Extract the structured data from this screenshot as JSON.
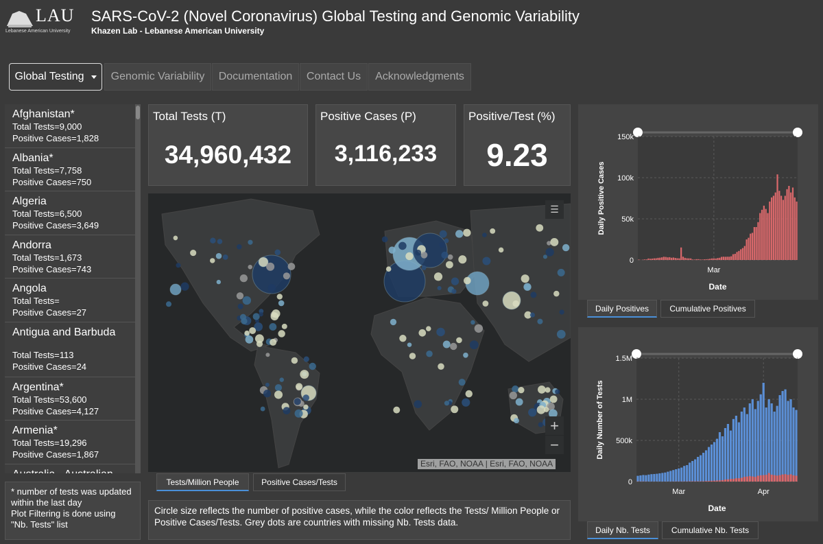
{
  "header": {
    "logo": "LAU",
    "logo_sub": "Lebanese American University",
    "title": "SARS-CoV-2 (Novel Coronavirus) Global Testing and Genomic Variability",
    "subtitle": "Khazen Lab - Lebanese American University"
  },
  "nav": [
    "Global Testing",
    "Genomic Variability",
    "Documentation",
    "Contact Us",
    "Acknowledgments"
  ],
  "countries": [
    {
      "name": "Afghanistan*",
      "tests": "Total Tests=9,000",
      "positives": "Positive Cases=1,828"
    },
    {
      "name": "Albania*",
      "tests": "Total Tests=7,758",
      "positives": "Positive Cases=750"
    },
    {
      "name": "Algeria",
      "tests": "Total Tests=6,500",
      "positives": "Positive Cases=3,649"
    },
    {
      "name": "Andorra",
      "tests": "Total Tests=1,673",
      "positives": "Positive Cases=743"
    },
    {
      "name": "Angola",
      "tests": "Total Tests=",
      "positives": "Positive Cases=27"
    },
    {
      "name": "Antigua and Barbuda",
      "tests": "Total Tests=113",
      "positives": "Positive Cases=24"
    },
    {
      "name": "Argentina*",
      "tests": "Total Tests=53,600",
      "positives": "Positive Cases=4,127"
    },
    {
      "name": "Armenia*",
      "tests": "Total Tests=19,296",
      "positives": "Positive Cases=1,867"
    },
    {
      "name": "Australia - Australian"
    }
  ],
  "footnote": [
    "* number of tests was updated within the last day",
    "Plot Filtering is done using \"Nb. Tests\" list"
  ],
  "kpis": [
    {
      "label": "Total Tests (T)",
      "value": "34,960,432"
    },
    {
      "label": "Positive Cases (P)",
      "value": "3,116,233"
    },
    {
      "label": "Positive/Test (%)",
      "value": "9.23"
    }
  ],
  "map": {
    "attribution": "Esri, FAO, NOAA | Esri, FAO, NOAA",
    "tabs": [
      "Tests/Million People",
      "Positive Cases/Tests"
    ],
    "caption": "Circle size reflects the number of positive cases, while the color reflects the Tests/ Million People or Positive Cases/Tests. Grey dots are countries with missing Nb. Tests data."
  },
  "chart_tabs": [
    [
      "Daily Positives",
      "Cumulative Positives"
    ],
    [
      "Daily Nb. Tests",
      "Cumulative Nb. Tests"
    ]
  ],
  "chart_data": [
    {
      "type": "bar",
      "ylabel": "Daily Positive Cases",
      "xlabel": "Date",
      "ylim": [
        0,
        150000
      ],
      "yticks": [
        0,
        {
          "value": 50000,
          "label": "50k"
        },
        {
          "value": 100000,
          "label": "100k"
        },
        {
          "value": 150000,
          "label": "150k"
        }
      ],
      "grid": true,
      "categories": [
        null,
        null,
        null,
        null,
        null,
        null,
        null,
        null,
        null,
        null,
        null,
        null,
        null,
        null,
        null,
        null,
        null,
        null,
        null,
        null,
        null,
        null,
        null,
        null,
        null,
        null,
        null,
        null,
        null,
        null,
        null,
        null,
        null,
        null,
        null,
        null,
        null,
        null,
        null,
        "Mar",
        null,
        null,
        null,
        null,
        null,
        null,
        null,
        null,
        null,
        null,
        null,
        null,
        null,
        null,
        null,
        null,
        null,
        null,
        null,
        null,
        null,
        null,
        null,
        null,
        null,
        null,
        null,
        null,
        null,
        null,
        null,
        null,
        null,
        null,
        null,
        null,
        null,
        null,
        null,
        null,
        null,
        null,
        null
      ],
      "series": [
        {
          "color": "#d9686b",
          "values": [
            500,
            150,
            300,
            700,
            700,
            1800,
            1500,
            1700,
            2000,
            2100,
            2600,
            2800,
            3200,
            3900,
            3700,
            3200,
            3400,
            2700,
            3000,
            2500,
            2100,
            2000,
            15200,
            4000,
            2600,
            2100,
            2000,
            1900,
            600,
            600,
            1000,
            1000,
            600,
            500,
            800,
            900,
            1100,
            1500,
            1900,
            2000,
            1800,
            2400,
            2700,
            3800,
            4000,
            3900,
            4000,
            4000,
            4500,
            7000,
            7500,
            9700,
            11000,
            13000,
            14500,
            17000,
            25000,
            27000,
            32000,
            33000,
            40000,
            40000,
            46000,
            57000,
            61000,
            66000,
            62000,
            57000,
            71000,
            76000,
            78000,
            82000,
            104000,
            84000,
            78000,
            73000,
            78000,
            86000,
            90000,
            82000,
            88000,
            76000,
            71000
          ]
        }
      ]
    },
    {
      "type": "bar",
      "ylabel": "Daily Number of Tests",
      "xlabel": "Date",
      "ylim": [
        0,
        1500000
      ],
      "yticks": [
        0,
        {
          "value": 500000,
          "label": "500k"
        },
        {
          "value": 1000000,
          "label": "1M"
        },
        {
          "value": 1500000,
          "label": "1.5M"
        }
      ],
      "grid": true,
      "categories": [
        null,
        null,
        null,
        null,
        null,
        null,
        null,
        null,
        null,
        null,
        null,
        null,
        null,
        null,
        null,
        "Mar",
        null,
        null,
        null,
        null,
        null,
        null,
        null,
        null,
        null,
        null,
        null,
        null,
        null,
        null,
        null,
        null,
        null,
        null,
        null,
        null,
        null,
        null,
        null,
        null,
        null,
        null,
        null,
        null,
        null,
        null,
        "Apr",
        null,
        null,
        null,
        null,
        null,
        null,
        null,
        null,
        null,
        null,
        null,
        null
      ],
      "series": [
        {
          "color": "#5b8fd6",
          "values": [
            70000,
            75000,
            80000,
            78000,
            85000,
            90000,
            92000,
            95000,
            100000,
            105000,
            110000,
            120000,
            130000,
            140000,
            150000,
            160000,
            170000,
            190000,
            200000,
            230000,
            250000,
            270000,
            300000,
            320000,
            350000,
            380000,
            420000,
            450000,
            480000,
            520000,
            600000,
            550000,
            650000,
            700000,
            620000,
            760000,
            800000,
            720000,
            850000,
            900000,
            820000,
            950000,
            1000000,
            880000,
            980000,
            1060000,
            1200000,
            900000,
            1000000,
            950000,
            850000,
            920000,
            1050000,
            1100000,
            1120000,
            980000,
            1000000,
            900000,
            870000
          ]
        },
        {
          "color": "#d9686b",
          "values": [
            2600,
            2100,
            2000,
            1900,
            600,
            600,
            1000,
            1000,
            600,
            500,
            800,
            900,
            1100,
            1500,
            1900,
            2000,
            1800,
            2400,
            2700,
            3800,
            4000,
            3900,
            4000,
            4000,
            4500,
            7000,
            7500,
            9700,
            11000,
            13000,
            14500,
            17000,
            25000,
            27000,
            32000,
            33000,
            40000,
            40000,
            46000,
            57000,
            61000,
            66000,
            62000,
            57000,
            71000,
            76000,
            78000,
            82000,
            104000,
            84000,
            78000,
            73000,
            78000,
            86000,
            90000,
            82000,
            88000,
            76000,
            71000
          ]
        }
      ]
    }
  ]
}
